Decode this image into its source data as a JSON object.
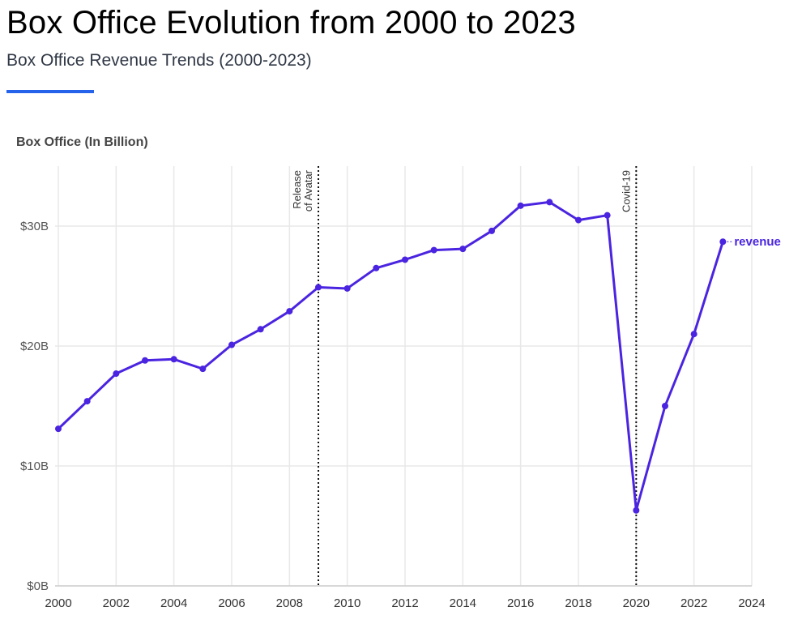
{
  "header": {
    "title": "Box Office Evolution from 2000 to 2023",
    "subtitle": "Box Office Revenue Trends (2000-2023)",
    "accent_color": "#2563eb"
  },
  "chart_data": {
    "type": "line",
    "ylabel": "Box Office (In Billion)",
    "xlim": [
      2000,
      2024
    ],
    "ylim": [
      0,
      35
    ],
    "x_ticks": [
      2000,
      2002,
      2004,
      2006,
      2008,
      2010,
      2012,
      2014,
      2016,
      2018,
      2020,
      2022,
      2024
    ],
    "y_ticks": [
      0,
      10,
      20,
      30
    ],
    "y_tick_labels": [
      "$0B",
      "$10B",
      "$20B",
      "$30B"
    ],
    "grid": true,
    "series": [
      {
        "name": "revenue",
        "color": "#4a24e0",
        "x": [
          2000,
          2001,
          2002,
          2003,
          2004,
          2005,
          2006,
          2007,
          2008,
          2009,
          2010,
          2011,
          2012,
          2013,
          2014,
          2015,
          2016,
          2017,
          2018,
          2019,
          2020,
          2021,
          2022,
          2023
        ],
        "values": [
          13.1,
          15.4,
          17.7,
          18.8,
          18.9,
          18.1,
          20.1,
          21.4,
          22.9,
          24.9,
          24.8,
          26.5,
          27.2,
          28.0,
          28.1,
          29.6,
          31.7,
          32.0,
          30.5,
          30.9,
          6.3,
          15.0,
          21.0,
          28.7
        ]
      }
    ],
    "annotations": [
      {
        "x": 2009,
        "label_lines": [
          "Release",
          "of Avatar"
        ]
      },
      {
        "x": 2020,
        "label_lines": [
          "Covid-19"
        ]
      }
    ]
  }
}
